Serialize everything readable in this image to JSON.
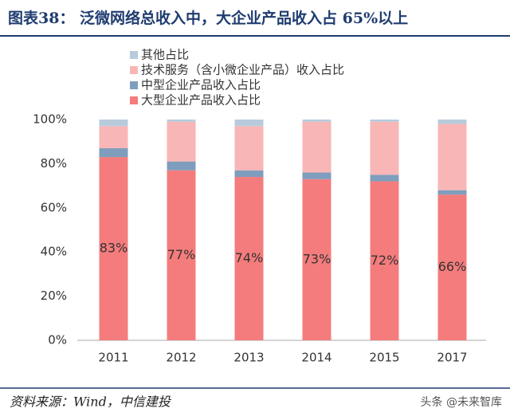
{
  "chart_data": {
    "type": "stacked_bar",
    "title": "图表38：   泛微网络总收入中，大企业产品收入占 65%以上",
    "categories": [
      "2011",
      "2012",
      "2013",
      "2014",
      "2015",
      "2017"
    ],
    "series": [
      {
        "name": "大型企业产品收入占比",
        "color": "#f47c7c",
        "values": [
          83,
          77,
          74,
          73,
          72,
          66
        ],
        "value_labels": [
          "83%",
          "77%",
          "74%",
          "73%",
          "72%",
          "66%"
        ]
      },
      {
        "name": "中型企业产品收入占比",
        "color": "#7f9dbd",
        "values": [
          4,
          4,
          3,
          3,
          3,
          2
        ]
      },
      {
        "name": "技术服务（含小微企业产品）收入占比",
        "color": "#f9b6b6",
        "values": [
          10,
          18,
          20,
          23,
          24,
          30
        ]
      },
      {
        "name": "其他占比",
        "color": "#b7cbdd",
        "values": [
          3,
          1,
          3,
          1,
          1,
          2
        ]
      }
    ],
    "ylim": [
      0,
      100
    ],
    "yticks": [
      {
        "value": 0,
        "label": "0%"
      },
      {
        "value": 20,
        "label": "20%"
      },
      {
        "value": 40,
        "label": "40%"
      },
      {
        "value": 60,
        "label": "60%"
      },
      {
        "value": 80,
        "label": "80%"
      },
      {
        "value": 100,
        "label": "100%"
      }
    ],
    "source": "资料来源：Wind，中信建投",
    "watermark": "头条 @未来智库"
  }
}
